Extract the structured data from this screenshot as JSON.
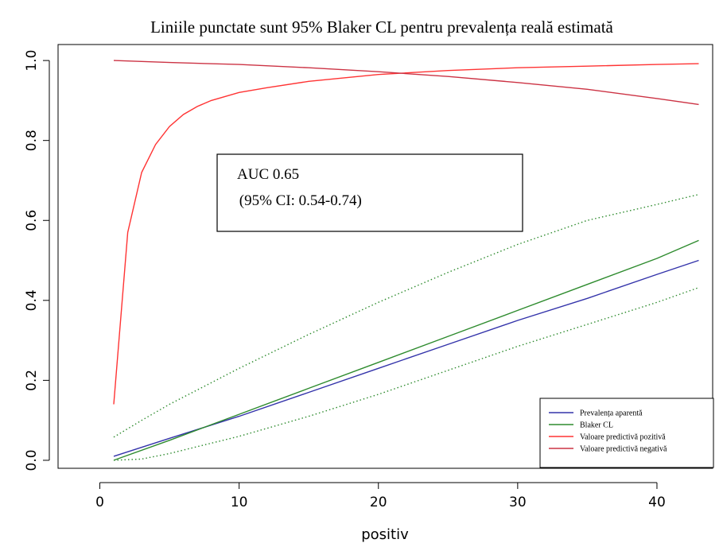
{
  "chart_data": {
    "type": "line",
    "title": "Liniile punctate sunt 95% Blaker CL pentru prevalența reală estimată",
    "xlabel": "positiv",
    "ylabel": "",
    "xlim": [
      -3,
      44
    ],
    "ylim": [
      -0.02,
      1.04
    ],
    "x_ticks": [
      0,
      10,
      20,
      30,
      40
    ],
    "y_ticks": [
      0.0,
      0.2,
      0.4,
      0.6,
      0.8,
      1.0
    ],
    "y_tick_labels": [
      "0.0",
      "0.2",
      "0.4",
      "0.6",
      "0.8",
      "1.0"
    ],
    "grid": false,
    "legend_position": "bottom-right",
    "annotation": {
      "line1": "AUC 0.65",
      "line2": " (95% CI: 0.54-0.74)"
    },
    "series": [
      {
        "name": "Prevalența aparentă",
        "color": "#3333aa",
        "style": "solid",
        "points": [
          [
            1,
            0.01
          ],
          [
            5,
            0.055
          ],
          [
            10,
            0.11
          ],
          [
            15,
            0.17
          ],
          [
            20,
            0.23
          ],
          [
            25,
            0.29
          ],
          [
            30,
            0.35
          ],
          [
            35,
            0.405
          ],
          [
            40,
            0.465
          ],
          [
            43,
            0.5
          ]
        ]
      },
      {
        "name": "Blaker CL",
        "color": "#2e8b2e",
        "style": "solid",
        "points": [
          [
            1,
            0.0
          ],
          [
            5,
            0.05
          ],
          [
            10,
            0.115
          ],
          [
            15,
            0.18
          ],
          [
            20,
            0.245
          ],
          [
            25,
            0.31
          ],
          [
            30,
            0.375
          ],
          [
            35,
            0.44
          ],
          [
            40,
            0.505
          ],
          [
            43,
            0.55
          ]
        ]
      },
      {
        "name": "Blaker CL upper",
        "color": "#2e8b2e",
        "style": "dotted",
        "in_legend": false,
        "points": [
          [
            1,
            0.058
          ],
          [
            3,
            0.1
          ],
          [
            5,
            0.14
          ],
          [
            10,
            0.23
          ],
          [
            15,
            0.315
          ],
          [
            20,
            0.395
          ],
          [
            25,
            0.47
          ],
          [
            30,
            0.54
          ],
          [
            35,
            0.6
          ],
          [
            40,
            0.64
          ],
          [
            43,
            0.665
          ]
        ]
      },
      {
        "name": "Blaker CL lower",
        "color": "#2e8b2e",
        "style": "dotted",
        "in_legend": false,
        "points": [
          [
            1,
            0.0
          ],
          [
            3,
            0.003
          ],
          [
            5,
            0.017
          ],
          [
            10,
            0.06
          ],
          [
            15,
            0.11
          ],
          [
            20,
            0.165
          ],
          [
            25,
            0.225
          ],
          [
            30,
            0.285
          ],
          [
            35,
            0.34
          ],
          [
            40,
            0.395
          ],
          [
            43,
            0.432
          ]
        ]
      },
      {
        "name": "Valoare predictivă pozitivă",
        "color": "#ff3333",
        "style": "solid",
        "points": [
          [
            1,
            0.14
          ],
          [
            2,
            0.57
          ],
          [
            3,
            0.72
          ],
          [
            4,
            0.79
          ],
          [
            5,
            0.835
          ],
          [
            6,
            0.865
          ],
          [
            7,
            0.885
          ],
          [
            8,
            0.9
          ],
          [
            10,
            0.92
          ],
          [
            12,
            0.932
          ],
          [
            15,
            0.948
          ],
          [
            20,
            0.965
          ],
          [
            25,
            0.975
          ],
          [
            30,
            0.982
          ],
          [
            35,
            0.986
          ],
          [
            40,
            0.99
          ],
          [
            43,
            0.992
          ]
        ]
      },
      {
        "name": "Valoare predictivă negativă",
        "color": "#cc3344",
        "style": "solid",
        "points": [
          [
            1,
            1.0
          ],
          [
            5,
            0.995
          ],
          [
            10,
            0.99
          ],
          [
            15,
            0.982
          ],
          [
            20,
            0.972
          ],
          [
            25,
            0.96
          ],
          [
            30,
            0.945
          ],
          [
            35,
            0.928
          ],
          [
            40,
            0.905
          ],
          [
            43,
            0.89
          ]
        ]
      }
    ]
  }
}
